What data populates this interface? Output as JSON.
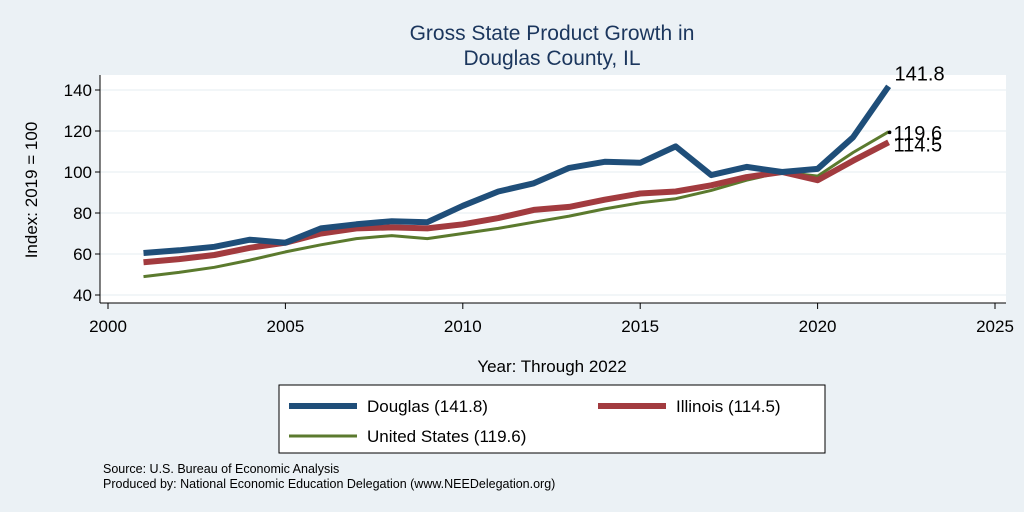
{
  "chart_data": {
    "type": "line",
    "title": [
      "Gross State Product Growth in",
      "Douglas County, IL"
    ],
    "xlabel": "Year: Through 2022",
    "ylabel": "Index: 2019 = 100",
    "xlim": [
      2000,
      2025
    ],
    "ylim": [
      40,
      145
    ],
    "xticks": [
      2000,
      2005,
      2010,
      2015,
      2020,
      2025
    ],
    "yticks": [
      40,
      60,
      80,
      100,
      120,
      140
    ],
    "grid": true,
    "legend_position": "bottom",
    "x": [
      2001,
      2002,
      2003,
      2004,
      2005,
      2006,
      2007,
      2008,
      2009,
      2010,
      2011,
      2012,
      2013,
      2014,
      2015,
      2016,
      2017,
      2018,
      2019,
      2020,
      2021,
      2022
    ],
    "series": [
      {
        "name": "Douglas",
        "legend_label": "Douglas  (141.8)",
        "end_label": "141.8",
        "color": "#1f4e79",
        "width": 6,
        "values": [
          60.5,
          61.8,
          63.5,
          67.0,
          65.5,
          72.5,
          74.5,
          76.0,
          75.5,
          83.5,
          90.5,
          94.5,
          102.0,
          105.0,
          104.5,
          112.5,
          98.5,
          102.5,
          100,
          101.5,
          117.0,
          141.8
        ]
      },
      {
        "name": "Illinois",
        "legend_label": "Illinois (114.5)",
        "end_label": "114.5",
        "color": "#a23b3f",
        "width": 6,
        "values": [
          56.0,
          57.5,
          59.5,
          63.0,
          65.5,
          70.0,
          72.5,
          73.0,
          72.5,
          74.5,
          77.5,
          81.5,
          83.0,
          86.5,
          89.5,
          90.5,
          93.5,
          97.5,
          100,
          96.0,
          105.5,
          114.5
        ]
      },
      {
        "name": "United States",
        "legend_label": "United States (119.6)",
        "end_label": "119.6",
        "color": "#5b7a2e",
        "width": 3,
        "values": [
          49.0,
          51.0,
          53.5,
          57.0,
          61.0,
          64.5,
          67.5,
          69.0,
          67.5,
          70.0,
          72.5,
          75.5,
          78.5,
          82.0,
          85.0,
          87.0,
          91.0,
          96.0,
          100,
          98.0,
          109.5,
          119.6
        ]
      }
    ],
    "source_lines": [
      "Source: U.S. Bureau of Economic Analysis",
      "Produced by: National Economic Education Delegation (www.NEEDelegation.org)"
    ]
  }
}
